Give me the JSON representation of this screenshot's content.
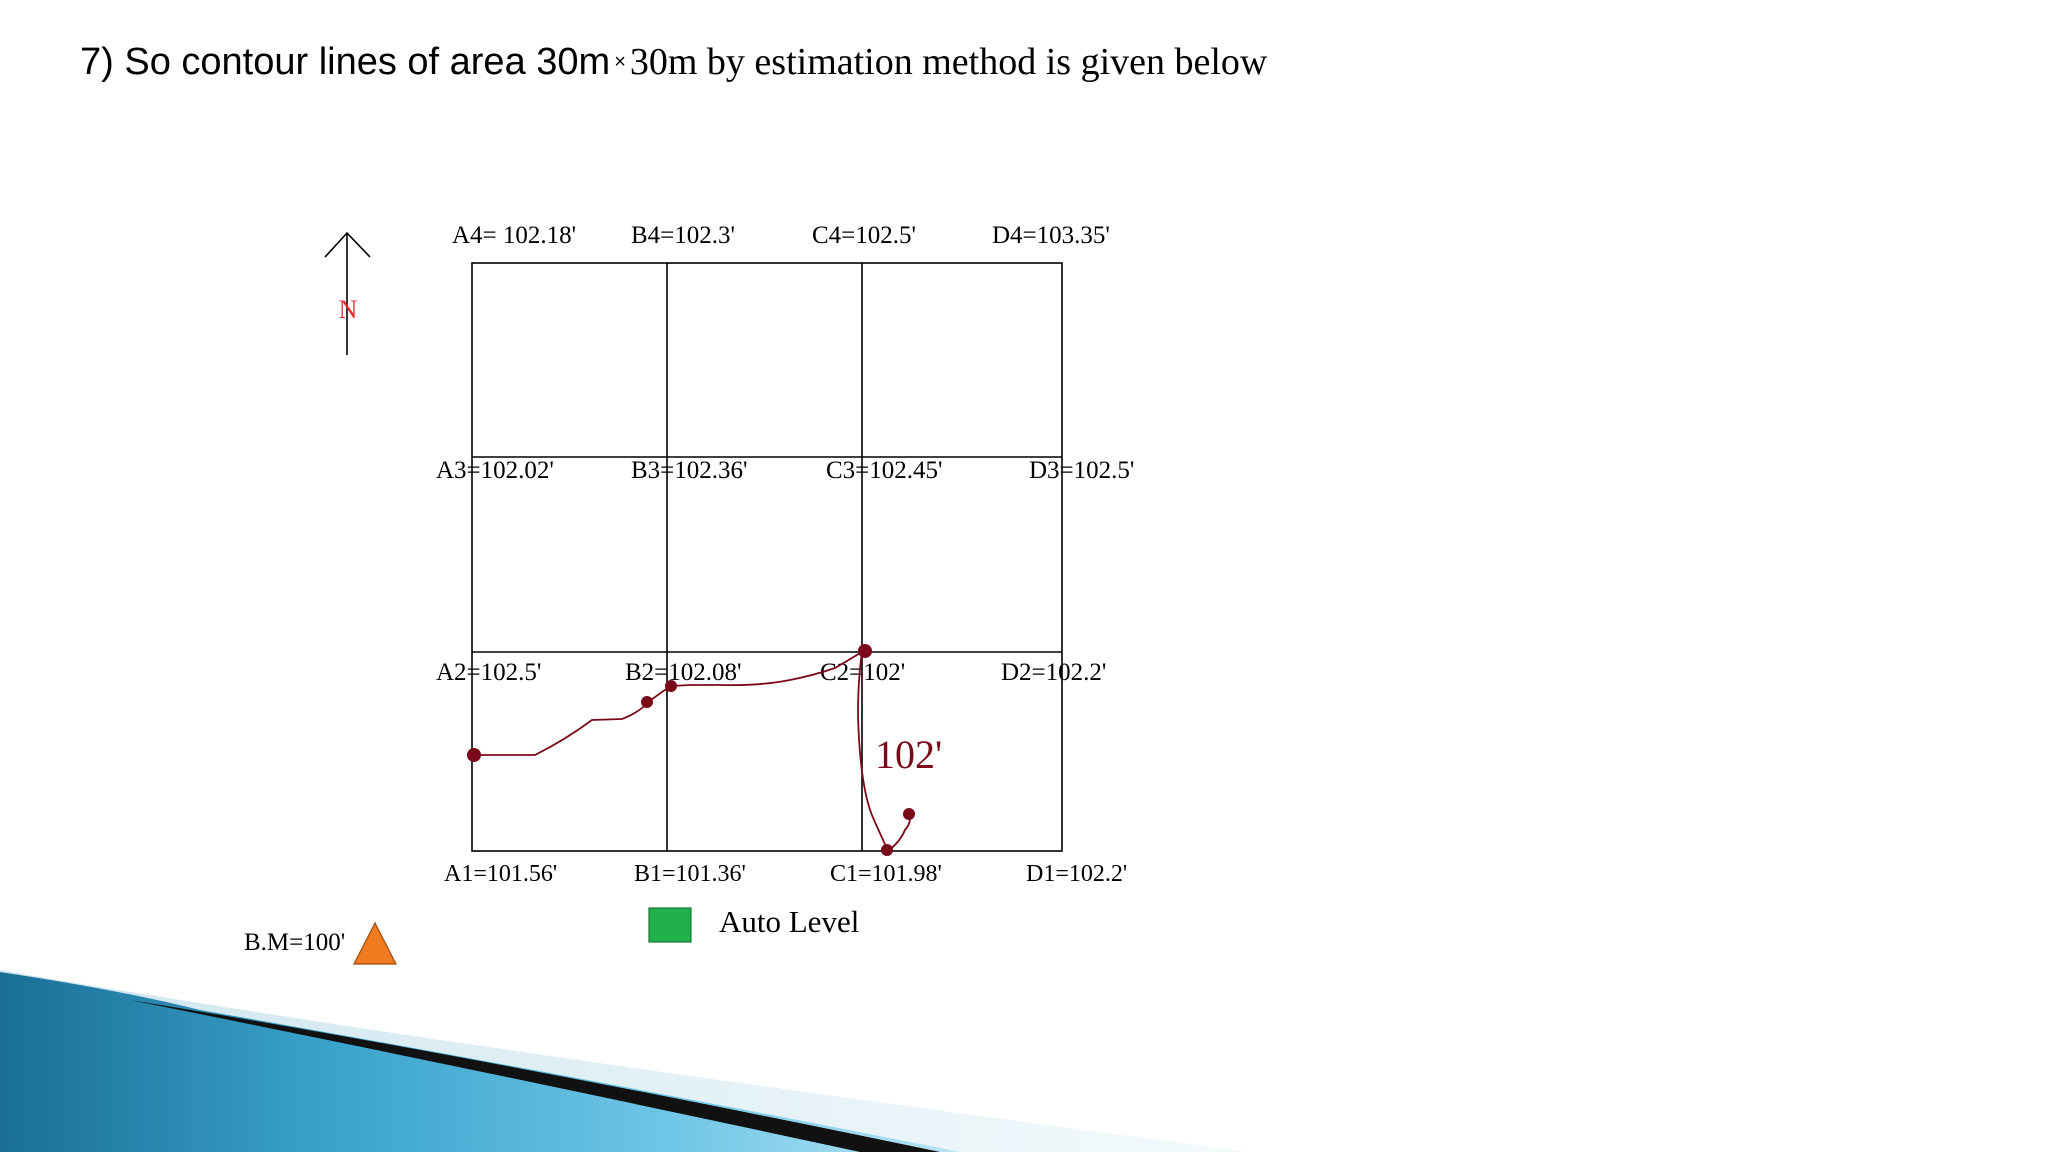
{
  "title": {
    "part1": "7) So contour lines of area 30m",
    "times": "×",
    "part2": "30m by estimation method is given below"
  },
  "north_label": "N",
  "grid": {
    "row4": [
      "A4= 102.18'",
      "B4=102.3'",
      "C4=102.5'",
      "D4=103.35'"
    ],
    "row3": [
      "A3=102.02'",
      "B3=102.36'",
      "C3=102.45'",
      "D3=102.5'"
    ],
    "row2": [
      "A2=102.5'",
      "B2=102.08'",
      "C2=102'",
      "D2=102.2'"
    ],
    "row1": [
      "A1=101.56'",
      "B1=101.36'",
      "C1=101.98'",
      "D1=102.2'"
    ]
  },
  "contour_label": "102'",
  "benchmark_label": "B.M=100'",
  "legend_label": "Auto Level",
  "colors": {
    "contour": "#7a0a1a",
    "north_label": "#e03030",
    "benchmark": "#f07a20",
    "legend_box": "#22b04b"
  }
}
